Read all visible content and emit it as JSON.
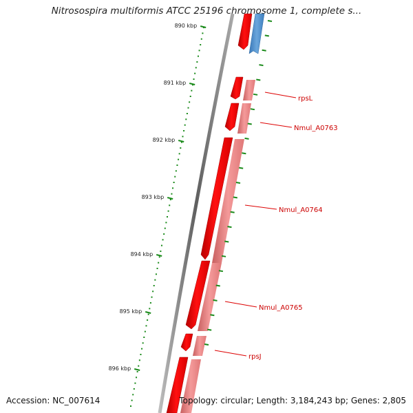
{
  "title": "Nitrosospira multiformis ATCC 25196 chromosome 1, complete s...",
  "ticks": [
    {
      "label": "890 kbp"
    },
    {
      "label": "891 kbp"
    },
    {
      "label": "892 kbp"
    },
    {
      "label": "893 kbp"
    },
    {
      "label": "894 kbp"
    },
    {
      "label": "895 kbp"
    },
    {
      "label": "896 kbp"
    }
  ],
  "genes": [
    {
      "name": "rpsL"
    },
    {
      "name": "Nmul_A0763"
    },
    {
      "name": "Nmul_A0764"
    },
    {
      "name": "Nmul_A0765"
    },
    {
      "name": "rpsJ"
    }
  ],
  "footer": {
    "accession": "Accession: NC_007614",
    "summary": "Topology: circular; Length: 3,184,243 bp; Genes: 2,805"
  },
  "colors": {
    "cds": "#ff0000",
    "gene": "#f08080",
    "other_strand": "#4f8fc8",
    "backbone": "#7a7a7a",
    "ticks": "#1a8a1a"
  }
}
